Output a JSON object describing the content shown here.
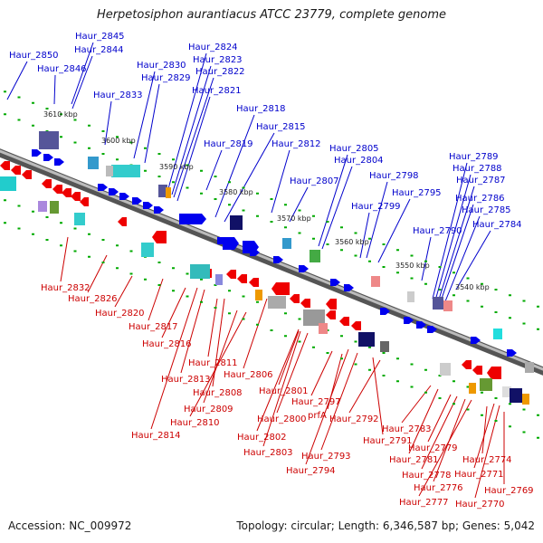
{
  "title": "Herpetosiphon aurantiacus ATCC 23779, complete genome",
  "footer": {
    "accession": "Accession: NC_009972",
    "stats": "Topology: circular; Length: 6,346,587 bp; Genes: 5,042"
  },
  "colors": {
    "forward_label": "#0000cc",
    "reverse_label": "#cc0000",
    "forward_feature": "#0000ee",
    "reverse_feature": "#ee0000",
    "backbone": "#888888",
    "tick": "#00aa00"
  },
  "scale_labels": [
    "3610 kbp",
    "3600 kbp",
    "3590 kbp",
    "3580 kbp",
    "3570 kbp",
    "3560 kbp",
    "3550 kbp",
    "3540 kbp"
  ],
  "forward_labels": [
    "Haur_2850",
    "Haur_2845",
    "Haur_2844",
    "Haur_2846",
    "Haur_2833",
    "Haur_2830",
    "Haur_2829",
    "Haur_2824",
    "Haur_2823",
    "Haur_2822",
    "Haur_2821",
    "Haur_2818",
    "Haur_2815",
    "Haur_2819",
    "Haur_2812",
    "Haur_2807",
    "Haur_2805",
    "Haur_2804",
    "Haur_2798",
    "Haur_2795",
    "Haur_2799",
    "Haur_2790",
    "Haur_2789",
    "Haur_2788",
    "Haur_2787",
    "Haur_2786",
    "Haur_2785",
    "Haur_2784"
  ],
  "reverse_labels": [
    "Haur_2832",
    "Haur_2826",
    "Haur_2820",
    "Haur_2817",
    "Haur_2816",
    "Haur_2811",
    "Haur_2813",
    "Haur_2806",
    "Haur_2808",
    "Haur_2809",
    "Haur_2810",
    "Haur_2814",
    "Haur_2801",
    "Haur_2797",
    "prfA",
    "Haur_2800",
    "Haur_2802",
    "Haur_2803",
    "Haur_2792",
    "Haur_2791",
    "Haur_2793",
    "Haur_2794",
    "Haur_2783",
    "Haur_2779",
    "Haur_2781",
    "Haur_2774",
    "Haur_2778",
    "Haur_2771",
    "Haur_2776",
    "Haur_2769",
    "Haur_2777",
    "Haur_2770"
  ]
}
